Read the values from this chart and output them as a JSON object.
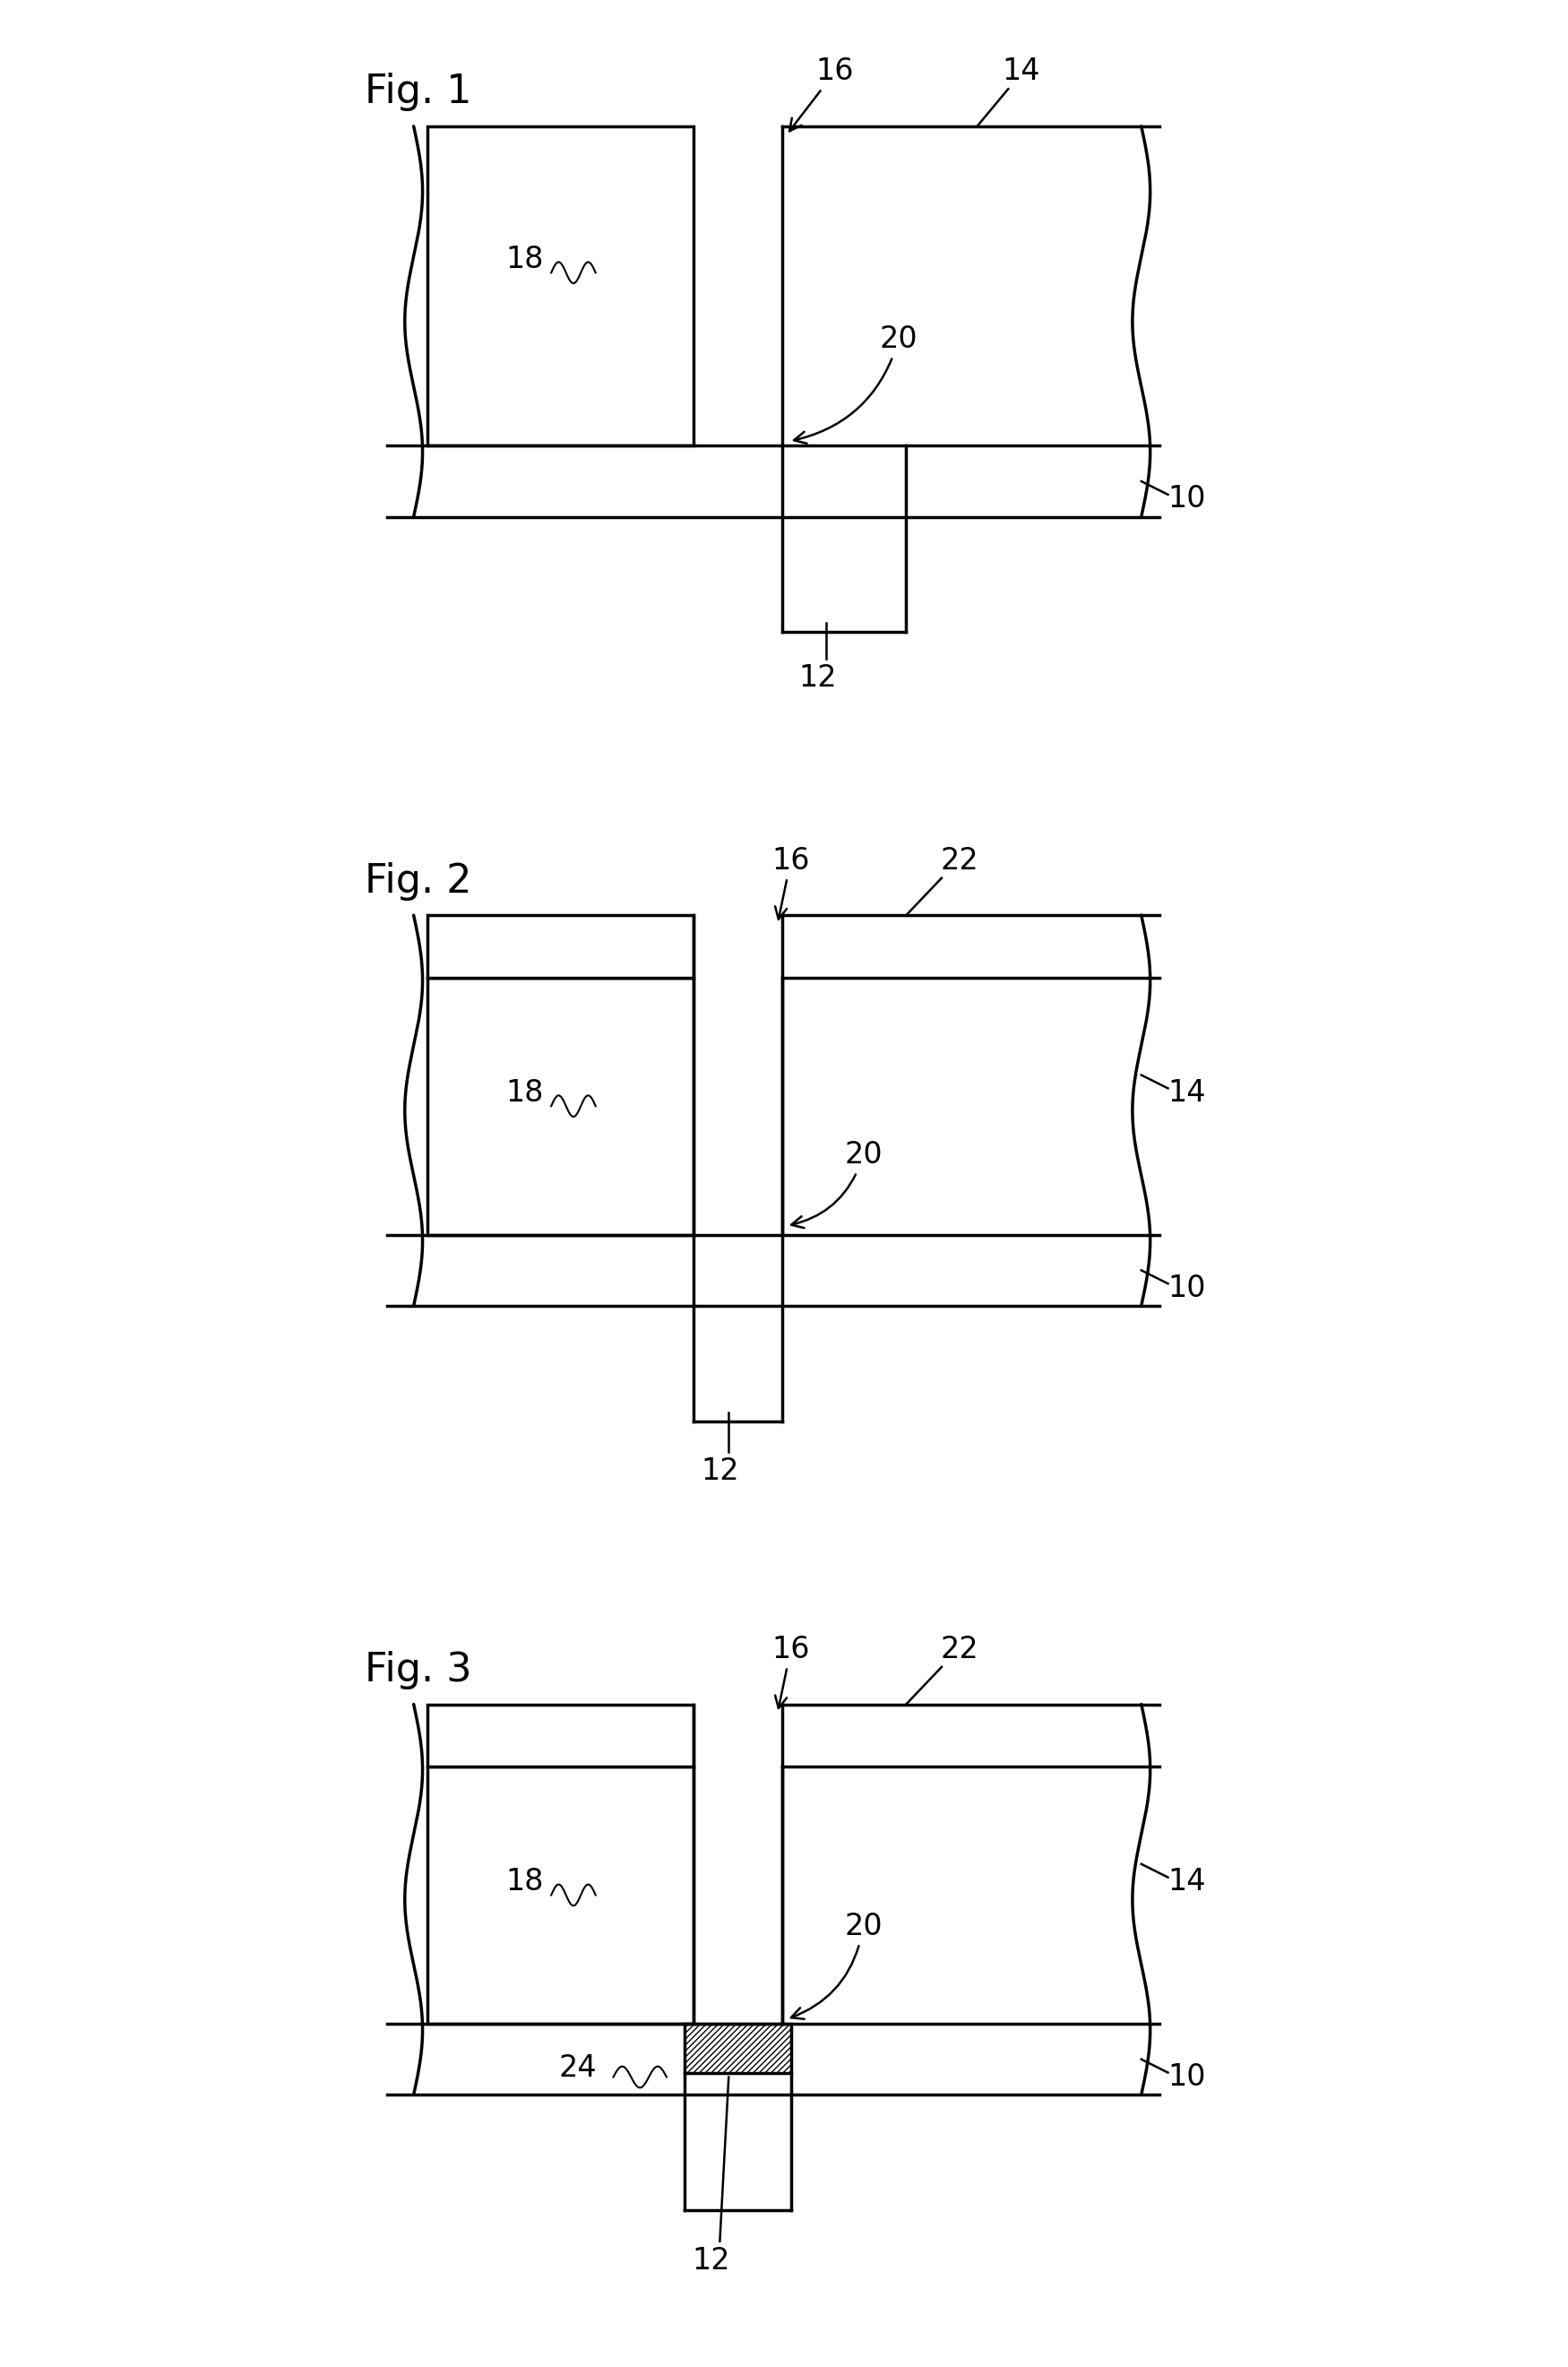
{
  "fig_labels": [
    "Fig. 1",
    "Fig. 2",
    "Fig. 3"
  ],
  "fig_label_fontsize": 32,
  "label_fontsize": 24,
  "bg_color": "#ffffff",
  "line_color": "#000000",
  "line_width": 2.5
}
